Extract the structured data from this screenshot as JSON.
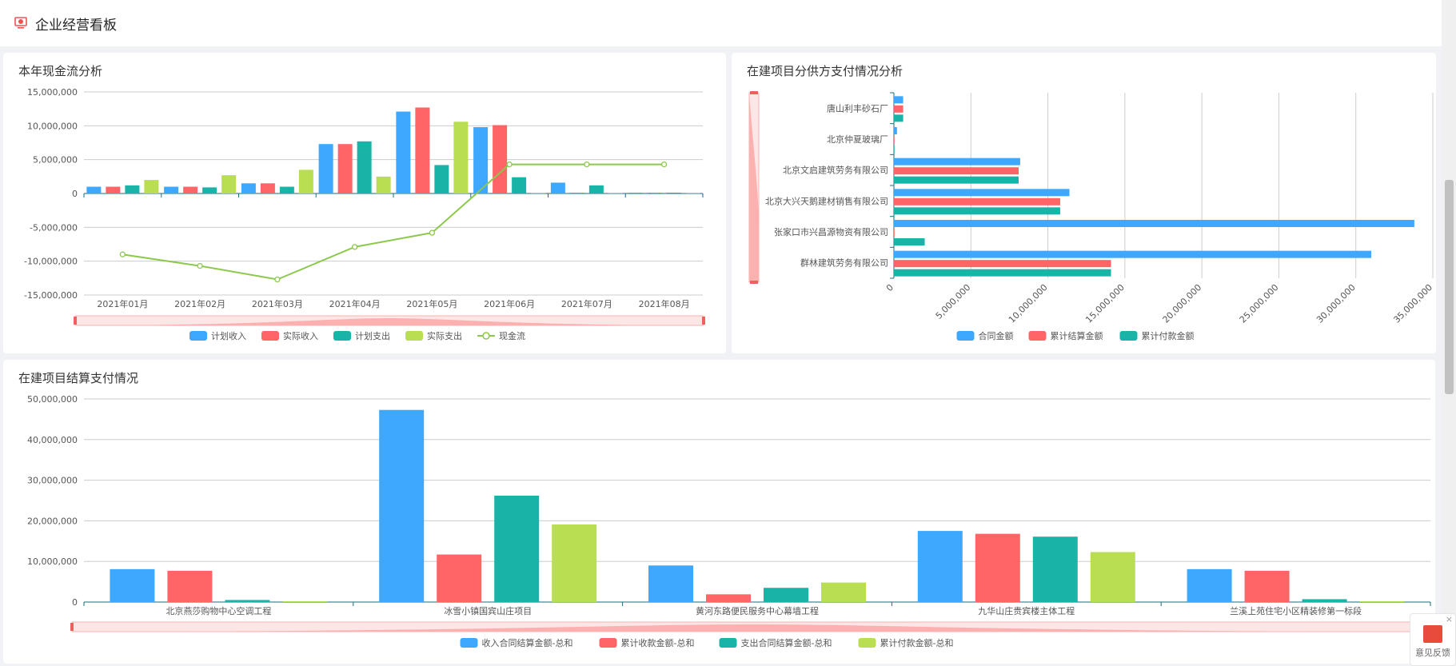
{
  "header": {
    "title": "企业经营看板",
    "icon": "monitor-chart-icon"
  },
  "feedback": {
    "label": "意见反馈",
    "close": "×"
  },
  "colors": [
    "#3ea8ff",
    "#ff6466",
    "#18b4a8",
    "#b9de52"
  ],
  "chart_data": [
    {
      "type": "bar",
      "title": "本年现金流分析",
      "categories": [
        "2021年01月",
        "2021年02月",
        "2021年03月",
        "2021年04月",
        "2021年05月",
        "2021年06月",
        "2021年07月",
        "2021年08月"
      ],
      "yticks": [
        "15,000,000",
        "10,000,000",
        "5,000,000",
        "0",
        "-5,000,000",
        "-10,000,000",
        "-15,000,000"
      ],
      "ylim": [
        -15000000,
        15000000
      ],
      "series": [
        {
          "name": "计划收入",
          "values": [
            1000000,
            1000000,
            1500000,
            7300000,
            12100000,
            9800000,
            1600000,
            50000
          ]
        },
        {
          "name": "实际收入",
          "values": [
            1000000,
            1000000,
            1500000,
            7300000,
            12700000,
            10100000,
            100000,
            50000
          ]
        },
        {
          "name": "计划支出",
          "values": [
            1200000,
            900000,
            1000000,
            7700000,
            4200000,
            2400000,
            1200000,
            50000
          ]
        },
        {
          "name": "实际支出",
          "values": [
            2000000,
            2700000,
            3500000,
            2500000,
            10600000,
            100000,
            100000,
            50000
          ]
        }
      ],
      "line": {
        "name": "现金流",
        "color": "#8cc84b",
        "values": [
          -9000000,
          -10700000,
          -12700000,
          -7900000,
          -5800000,
          4300000,
          4300000,
          4300000
        ]
      },
      "legend": "bottom",
      "grid": true
    },
    {
      "type": "bar",
      "orientation": "horizontal",
      "title": "在建项目分供方支付情况分析",
      "categories": [
        "唐山利丰砂石厂",
        "北京仲夏玻璃厂",
        "北京文启建筑劳务有限公司",
        "北京大兴天鹅建材销售有限公司",
        "张家口市兴昌源物资有限公司",
        "群林建筑劳务有限公司"
      ],
      "xticks": [
        "0",
        "5,000,000",
        "10,000,000",
        "15,000,000",
        "20,000,000",
        "25,000,000",
        "30,000,000",
        "35,000,000"
      ],
      "xlim": [
        0,
        35000000
      ],
      "series": [
        {
          "name": "合同金额",
          "values": [
            600000,
            200000,
            8200000,
            11400000,
            33800000,
            31000000
          ]
        },
        {
          "name": "累计结算金额",
          "values": [
            600000,
            0,
            8100000,
            10800000,
            0,
            14100000
          ]
        },
        {
          "name": "累计付款金额",
          "values": [
            600000,
            0,
            8100000,
            10800000,
            2000000,
            14100000
          ]
        }
      ],
      "legend": "bottom",
      "grid": true
    },
    {
      "type": "bar",
      "title": "在建项目结算支付情况",
      "categories": [
        "北京燕莎购物中心空调工程",
        "冰雪小镇国宾山庄项目",
        "黄河东路便民服务中心幕墙工程",
        "九华山庄贵宾楼主体工程",
        "兰溪上苑住宅小区精装修第一标段"
      ],
      "yticks": [
        "50,000,000",
        "40,000,000",
        "30,000,000",
        "20,000,000",
        "10,000,000",
        "0"
      ],
      "ylim": [
        0,
        50000000
      ],
      "series": [
        {
          "name": "收入合同结算金额-总和",
          "values": [
            8100000,
            47300000,
            9000000,
            17500000,
            8100000
          ]
        },
        {
          "name": "累计收款金额-总和",
          "values": [
            7700000,
            11700000,
            1900000,
            16800000,
            7700000
          ]
        },
        {
          "name": "支出合同结算金额-总和",
          "values": [
            500000,
            26200000,
            3500000,
            16100000,
            700000
          ]
        },
        {
          "name": "累计付款金额-总和",
          "values": [
            100000,
            19100000,
            4800000,
            12300000,
            100000
          ]
        }
      ],
      "legend": "bottom",
      "grid": true
    }
  ]
}
